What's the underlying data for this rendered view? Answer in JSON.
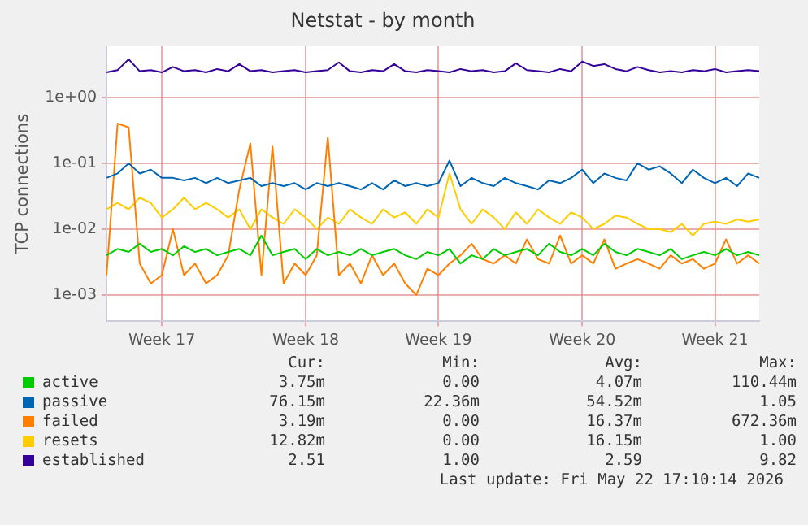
{
  "chart_data": {
    "type": "line",
    "title": "Netstat - by month",
    "ylabel": "TCP connections",
    "log": "y",
    "grid": true,
    "legend": "bottom",
    "marker": "none",
    "line_style": "solid",
    "ylim": [
      0.0004,
      6
    ],
    "yticks": [
      {
        "value": 0.001,
        "label": "1e-03"
      },
      {
        "value": 0.01,
        "label": "1e-02"
      },
      {
        "value": 0.1,
        "label": "1e-01"
      },
      {
        "value": 1,
        "label": "1e+00"
      }
    ],
    "categories": [
      null,
      null,
      null,
      null,
      null,
      "Week 17",
      null,
      null,
      null,
      null,
      null,
      null,
      null,
      null,
      null,
      null,
      null,
      null,
      "Week 18",
      null,
      null,
      null,
      null,
      null,
      null,
      null,
      null,
      null,
      null,
      null,
      "Week 19",
      null,
      null,
      null,
      null,
      null,
      null,
      null,
      null,
      null,
      null,
      null,
      null,
      "Week 20",
      null,
      null,
      null,
      null,
      null,
      null,
      null,
      null,
      null,
      null,
      null,
      "Week 21",
      null,
      null,
      null,
      null
    ],
    "series": [
      {
        "name": "active",
        "color": "#00cc00",
        "values": [
          0.004,
          0.005,
          0.0045,
          0.006,
          0.0045,
          0.005,
          0.004,
          0.0055,
          0.0045,
          0.005,
          0.004,
          0.0045,
          0.005,
          0.004,
          0.008,
          0.004,
          0.0045,
          0.005,
          0.0035,
          0.005,
          0.004,
          0.0045,
          0.004,
          0.005,
          0.004,
          0.0045,
          0.005,
          0.004,
          0.0035,
          0.0045,
          0.004,
          0.005,
          0.003,
          0.004,
          0.0035,
          0.005,
          0.004,
          0.0045,
          0.005,
          0.004,
          0.006,
          0.0045,
          0.004,
          0.005,
          0.004,
          0.006,
          0.0045,
          0.004,
          0.005,
          0.0045,
          0.004,
          0.005,
          0.0035,
          0.004,
          0.0045,
          0.004,
          0.005,
          0.004,
          0.0045,
          0.004
        ]
      },
      {
        "name": "passive",
        "color": "#0066b3",
        "values": [
          0.06,
          0.07,
          0.1,
          0.07,
          0.08,
          0.06,
          0.06,
          0.055,
          0.06,
          0.05,
          0.06,
          0.05,
          0.055,
          0.06,
          0.045,
          0.05,
          0.045,
          0.05,
          0.04,
          0.05,
          0.045,
          0.05,
          0.045,
          0.04,
          0.05,
          0.04,
          0.055,
          0.045,
          0.05,
          0.045,
          0.05,
          0.11,
          0.045,
          0.06,
          0.05,
          0.045,
          0.06,
          0.05,
          0.045,
          0.04,
          0.055,
          0.05,
          0.06,
          0.08,
          0.05,
          0.07,
          0.06,
          0.055,
          0.1,
          0.08,
          0.09,
          0.07,
          0.05,
          0.08,
          0.06,
          0.05,
          0.06,
          0.045,
          0.07,
          0.06
        ]
      },
      {
        "name": "failed",
        "color": "#ff8000",
        "values": [
          0.002,
          0.4,
          0.35,
          0.003,
          0.0015,
          0.002,
          0.01,
          0.002,
          0.003,
          0.0015,
          0.002,
          0.004,
          0.04,
          0.2,
          0.002,
          0.18,
          0.0015,
          0.003,
          0.002,
          0.004,
          0.25,
          0.002,
          0.003,
          0.0015,
          0.004,
          0.002,
          0.003,
          0.0015,
          0.001,
          0.0025,
          0.002,
          0.003,
          0.004,
          0.006,
          0.0035,
          0.003,
          0.004,
          0.003,
          0.007,
          0.0035,
          0.003,
          0.008,
          0.003,
          0.004,
          0.003,
          0.007,
          0.0025,
          0.003,
          0.0035,
          0.003,
          0.0025,
          0.004,
          0.003,
          0.0035,
          0.0025,
          0.003,
          0.007,
          0.003,
          0.004,
          0.003
        ]
      },
      {
        "name": "resets",
        "color": "#ffcc00",
        "values": [
          0.02,
          0.025,
          0.02,
          0.03,
          0.025,
          0.015,
          0.02,
          0.03,
          0.02,
          0.025,
          0.02,
          0.015,
          0.02,
          0.01,
          0.02,
          0.015,
          0.012,
          0.02,
          0.015,
          0.01,
          0.015,
          0.012,
          0.02,
          0.015,
          0.012,
          0.02,
          0.015,
          0.018,
          0.012,
          0.02,
          0.015,
          0.07,
          0.02,
          0.012,
          0.02,
          0.015,
          0.01,
          0.018,
          0.012,
          0.02,
          0.015,
          0.012,
          0.018,
          0.015,
          0.01,
          0.012,
          0.016,
          0.015,
          0.012,
          0.01,
          0.01,
          0.009,
          0.012,
          0.008,
          0.012,
          0.013,
          0.012,
          0.014,
          0.013,
          0.014
        ]
      },
      {
        "name": "established",
        "color": "#330099",
        "values": [
          2.4,
          2.6,
          3.8,
          2.5,
          2.6,
          2.4,
          2.9,
          2.5,
          2.6,
          2.4,
          2.7,
          2.5,
          3.2,
          2.5,
          2.6,
          2.4,
          2.5,
          2.6,
          2.4,
          2.5,
          2.6,
          3.4,
          2.5,
          2.4,
          2.6,
          2.5,
          3.2,
          2.5,
          2.4,
          2.6,
          2.5,
          2.4,
          2.7,
          2.5,
          2.6,
          2.4,
          2.5,
          3.3,
          2.6,
          2.5,
          2.4,
          2.7,
          2.5,
          3.5,
          3.0,
          3.2,
          2.7,
          2.5,
          2.9,
          2.6,
          2.4,
          2.5,
          2.4,
          2.6,
          2.5,
          2.7,
          2.4,
          2.5,
          2.6,
          2.5
        ]
      }
    ],
    "annotations": [
      "Cur:\tMin:\tAvg:\tMax:",
      "3.75m\t0.00\t4.07m\t110.44m",
      "76.15m\t22.36m\t54.52m\t1.05",
      "3.19m\t0.00\t16.37m\t672.36m",
      "12.82m\t0.00\t16.15m\t1.00",
      "2.51\t1.00\t2.59\t9.82",
      "Last update: Fri May 22 17:10:14 2026"
    ]
  }
}
